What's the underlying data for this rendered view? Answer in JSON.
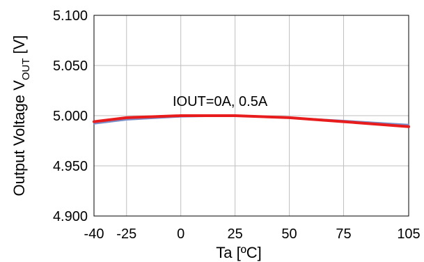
{
  "chart_data": {
    "type": "line",
    "xlabel": "Ta [ºC]",
    "ylabel": {
      "main": "Output Voltage V",
      "sub": "OUT",
      "unit": " [V]"
    },
    "annotation": "IOUT=0A, 0.5A",
    "xlim": [
      -40,
      105
    ],
    "ylim": [
      4.9,
      5.1
    ],
    "x_ticks": [
      -40,
      -25,
      0,
      25,
      50,
      75,
      105
    ],
    "x_tick_labels": [
      "-40",
      "-25",
      "0",
      "25",
      "50",
      "75",
      "105"
    ],
    "y_ticks": [
      4.9,
      4.95,
      5.0,
      5.05,
      5.1
    ],
    "y_tick_labels": [
      "4.900",
      "4.950",
      "5.000",
      "5.050",
      "5.100"
    ],
    "grid": true,
    "series": [
      {
        "color": "#7a8fc9",
        "x": [
          -40,
          -25,
          0,
          25,
          50,
          75,
          105
        ],
        "y": [
          4.992,
          4.996,
          4.999,
          5.0,
          4.998,
          4.995,
          4.991
        ]
      },
      {
        "color": "#e81c1c",
        "x": [
          -40,
          -25,
          0,
          25,
          50,
          75,
          105
        ],
        "y": [
          4.994,
          4.998,
          5.0,
          5.0,
          4.998,
          4.994,
          4.989
        ]
      }
    ]
  }
}
